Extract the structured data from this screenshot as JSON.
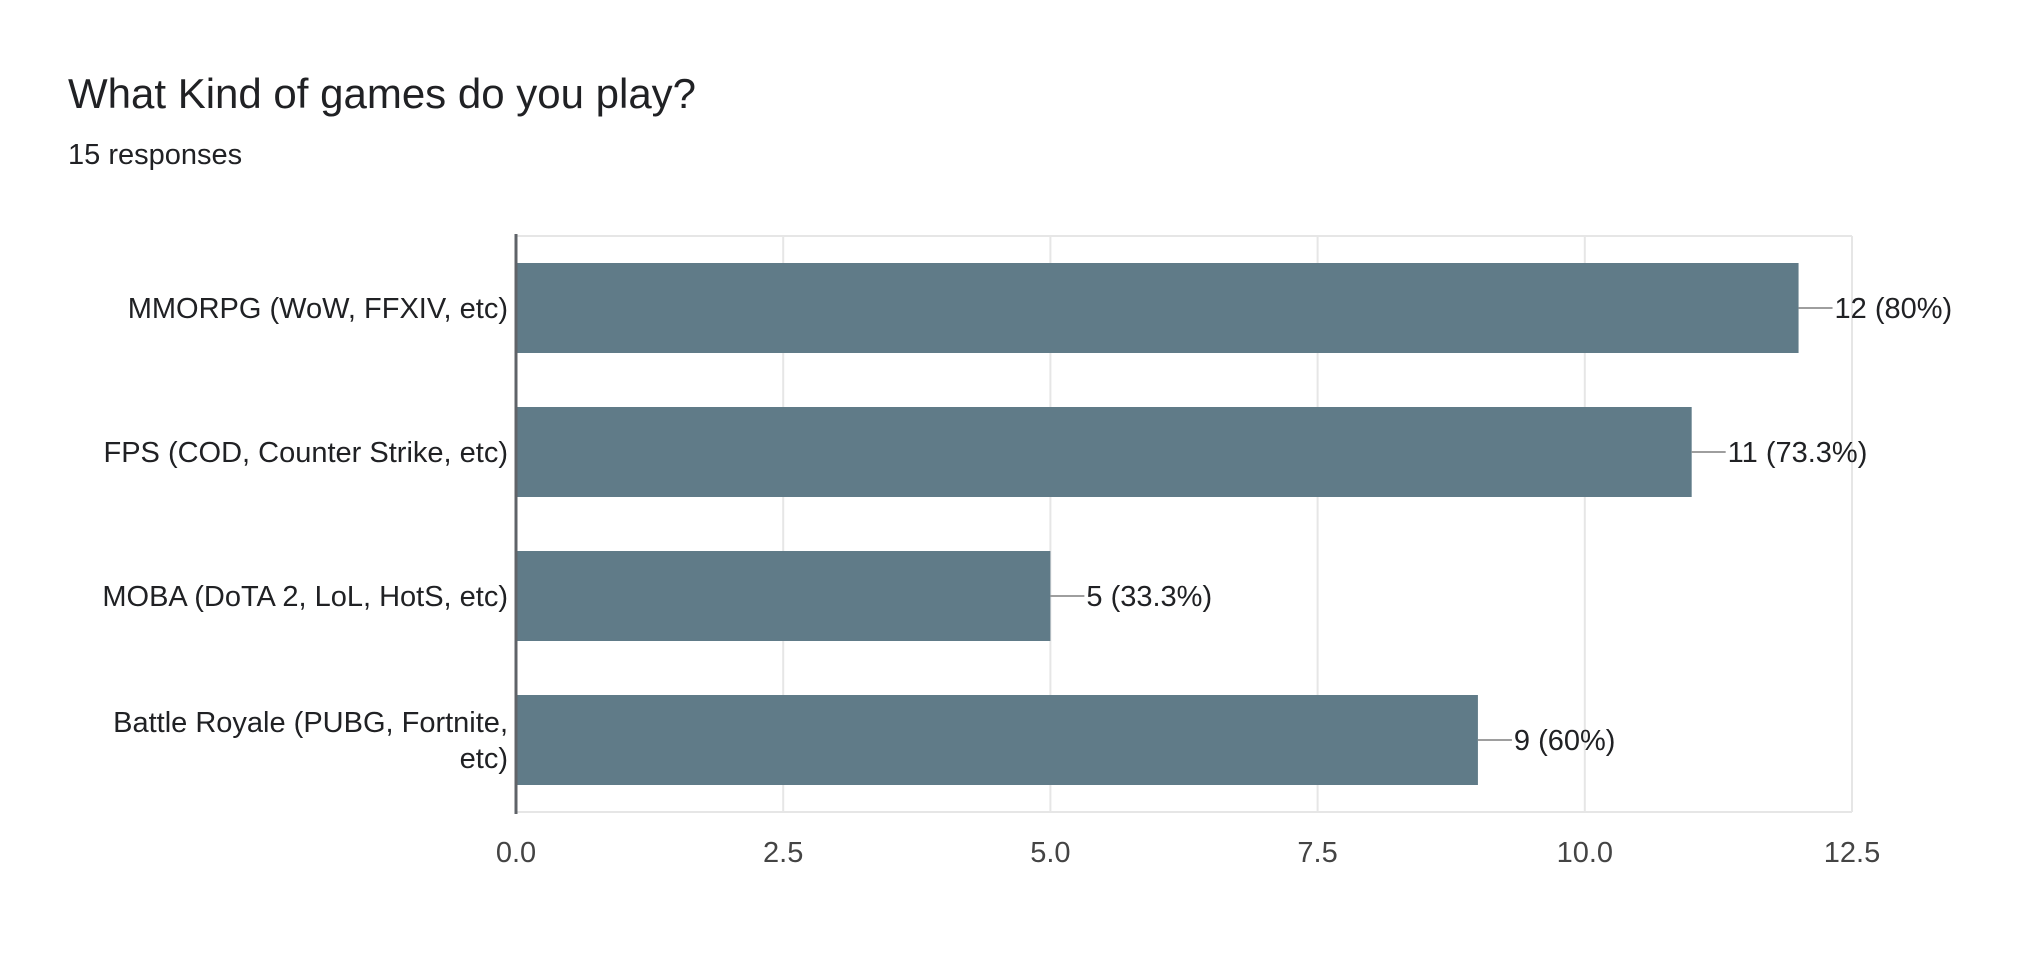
{
  "question": {
    "title": "What Kind of games do you play?",
    "responses": "15 responses"
  },
  "colors": {
    "bar": "#607b88",
    "grid": "#e6e6e6",
    "axis": "#5f6368",
    "text": "#202124",
    "tick_text": "#444444",
    "leader": "#9e9e9e"
  },
  "chart_data": {
    "type": "bar",
    "orientation": "horizontal",
    "categories": [
      [
        "MMORPG (WoW, FFXIV, etc)"
      ],
      [
        "FPS (COD, Counter Strike, etc)"
      ],
      [
        "MOBA (DoTA 2, LoL, HotS, etc)"
      ],
      [
        "Battle Royale (PUBG, Fortnite,",
        "etc)"
      ]
    ],
    "values": [
      12,
      11,
      5,
      9
    ],
    "data_labels": [
      "12 (80%)",
      "11 (73.3%)",
      "5 (33.3%)",
      "9 (60%)"
    ],
    "xlim": [
      0,
      12.5
    ],
    "xticks": [
      0,
      2.5,
      5,
      7.5,
      10,
      12.5
    ],
    "xtick_labels": [
      "0.0",
      "2.5",
      "5.0",
      "7.5",
      "10.0",
      "12.5"
    ],
    "grid": true
  }
}
